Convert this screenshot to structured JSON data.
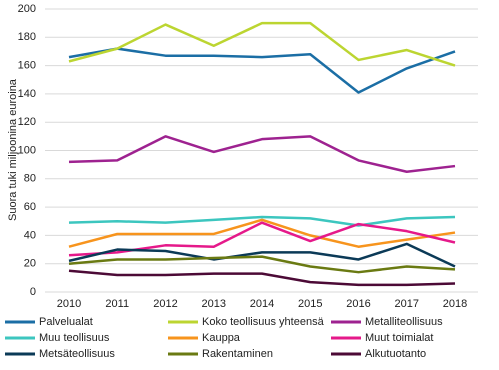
{
  "chart_data": {
    "type": "line",
    "y_label": "Suora tuki miljoonina euroina",
    "categories": [
      "2010",
      "2011",
      "2012",
      "2013",
      "2014",
      "2015",
      "2016",
      "2017",
      "2018"
    ],
    "ylim": [
      0,
      200
    ],
    "yticks": [
      0,
      20,
      40,
      60,
      80,
      100,
      120,
      140,
      160,
      180,
      200
    ],
    "grid": true,
    "series": [
      {
        "name": "Palvelualat",
        "color": "#1b6ea5",
        "values": [
          166,
          172,
          167,
          167,
          166,
          168,
          141,
          158,
          170
        ]
      },
      {
        "name": "Koko teollisuus yhteensä",
        "color": "#bcd531",
        "values": [
          163,
          172,
          189,
          174,
          190,
          190,
          164,
          171,
          160
        ]
      },
      {
        "name": "Metalliteollisuus",
        "color": "#9e2290",
        "values": [
          92,
          93,
          110,
          99,
          108,
          110,
          93,
          85,
          89
        ]
      },
      {
        "name": "Muu teollisuus",
        "color": "#3cc6bf",
        "values": [
          49,
          50,
          49,
          51,
          53,
          52,
          47,
          52,
          53
        ]
      },
      {
        "name": "Kauppa",
        "color": "#f7941d",
        "values": [
          32,
          41,
          41,
          41,
          51,
          40,
          32,
          37,
          42
        ]
      },
      {
        "name": "Muut toimialat",
        "color": "#e5198a",
        "values": [
          26,
          28,
          33,
          32,
          49,
          36,
          48,
          43,
          35
        ]
      },
      {
        "name": "Metsäteollisuus",
        "color": "#0b3a57",
        "values": [
          22,
          30,
          29,
          23,
          28,
          28,
          23,
          34,
          18
        ]
      },
      {
        "name": "Rakentaminen",
        "color": "#6a7a12",
        "values": [
          20,
          23,
          23,
          24,
          25,
          18,
          14,
          18,
          16
        ]
      },
      {
        "name": "Alkutuotanto",
        "color": "#4c0a36",
        "values": [
          15,
          12,
          12,
          13,
          13,
          7,
          5,
          5,
          6
        ]
      }
    ]
  }
}
